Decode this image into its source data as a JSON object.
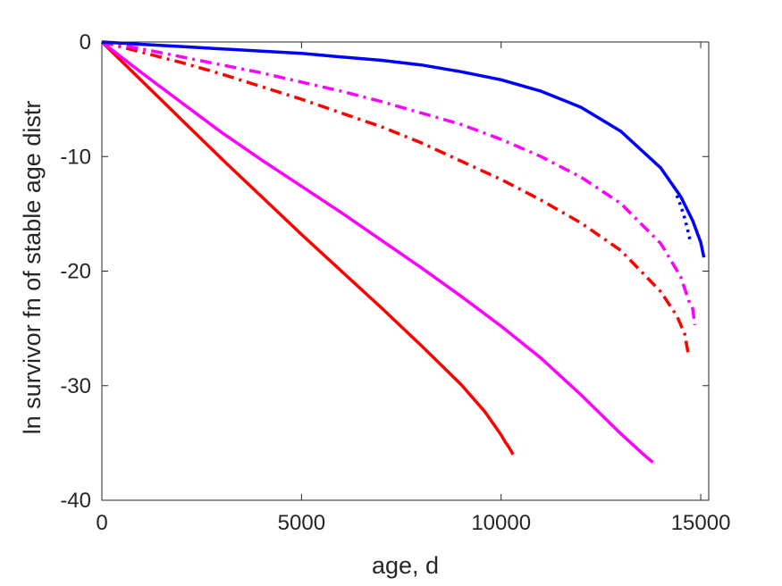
{
  "chart_data": {
    "type": "line",
    "title": "",
    "xlabel": "age, d",
    "ylabel": "ln survivor fn of stable age distr",
    "xlim": [
      0,
      15200
    ],
    "ylim": [
      -40,
      0
    ],
    "xticks": [
      0,
      5000,
      10000,
      15000
    ],
    "xtick_labels": [
      "0",
      "5000",
      "10000",
      "15000"
    ],
    "yticks": [
      0,
      -10,
      -20,
      -30,
      -40
    ],
    "ytick_labels": [
      "0",
      "-10",
      "-20",
      "-30",
      "-40"
    ],
    "grid": false,
    "box": true,
    "series": [
      {
        "color": "#ff0000",
        "dash": "solid",
        "x": [
          0,
          1000,
          2000,
          3000,
          4000,
          5000,
          6000,
          7000,
          8000,
          9000,
          9600,
          10000,
          10100,
          10200,
          10300
        ],
        "y": [
          0,
          -3.4,
          -6.8,
          -10.2,
          -13.5,
          -16.8,
          -20.0,
          -23.2,
          -26.5,
          -29.9,
          -32.3,
          -34.3,
          -34.9,
          -35.4,
          -36.0
        ]
      },
      {
        "color": "#ff00ff",
        "dash": "solid",
        "x": [
          0,
          1000,
          2000,
          3000,
          4000,
          5000,
          6000,
          7000,
          8000,
          9000,
          10000,
          11000,
          12000,
          13000,
          13500,
          13700,
          13800
        ],
        "y": [
          0,
          -2.7,
          -5.3,
          -7.9,
          -10.3,
          -12.6,
          -14.9,
          -17.3,
          -19.7,
          -22.2,
          -24.8,
          -27.6,
          -30.8,
          -34.2,
          -35.8,
          -36.4,
          -36.7
        ]
      },
      {
        "color": "#ff0000",
        "dash": "dashdot",
        "x": [
          0,
          1000,
          2000,
          3000,
          4000,
          5000,
          6000,
          7000,
          8000,
          9000,
          10000,
          11000,
          12000,
          13000,
          14000,
          14400,
          14600,
          14700
        ],
        "y": [
          0,
          -0.9,
          -1.8,
          -2.8,
          -3.9,
          -5.0,
          -6.2,
          -7.4,
          -8.8,
          -10.4,
          -12.0,
          -13.8,
          -15.8,
          -18.2,
          -21.8,
          -23.9,
          -25.5,
          -27.5
        ]
      },
      {
        "color": "#ff00ff",
        "dash": "dashdot",
        "x": [
          0,
          1000,
          2000,
          3000,
          4000,
          5000,
          6000,
          7000,
          8000,
          9000,
          10000,
          11000,
          12000,
          13000,
          14000,
          14500,
          14700,
          14800,
          14850
        ],
        "y": [
          0,
          -0.6,
          -1.3,
          -2.0,
          -2.7,
          -3.5,
          -4.3,
          -5.2,
          -6.2,
          -7.2,
          -8.5,
          -10.0,
          -11.8,
          -14.1,
          -17.6,
          -20.5,
          -22.6,
          -23.3,
          -24.7
        ]
      },
      {
        "color": "#0000ff",
        "dash": "solid",
        "x": [
          0,
          1000,
          2000,
          3000,
          4000,
          5000,
          6000,
          7000,
          8000,
          9000,
          10000,
          11000,
          12000,
          13000,
          14000,
          14500,
          14800,
          15000,
          15080
        ],
        "y": [
          0,
          -0.2,
          -0.4,
          -0.6,
          -0.8,
          -1.0,
          -1.3,
          -1.6,
          -2.0,
          -2.6,
          -3.3,
          -4.3,
          -5.7,
          -7.8,
          -11.0,
          -13.5,
          -15.6,
          -17.5,
          -18.8
        ]
      },
      {
        "color": "#0000ff",
        "dash": "dotted",
        "x": [
          14400,
          14500,
          14600,
          14700,
          14750
        ],
        "y": [
          -13.4,
          -14.3,
          -15.4,
          -16.8,
          -17.6
        ]
      }
    ]
  }
}
